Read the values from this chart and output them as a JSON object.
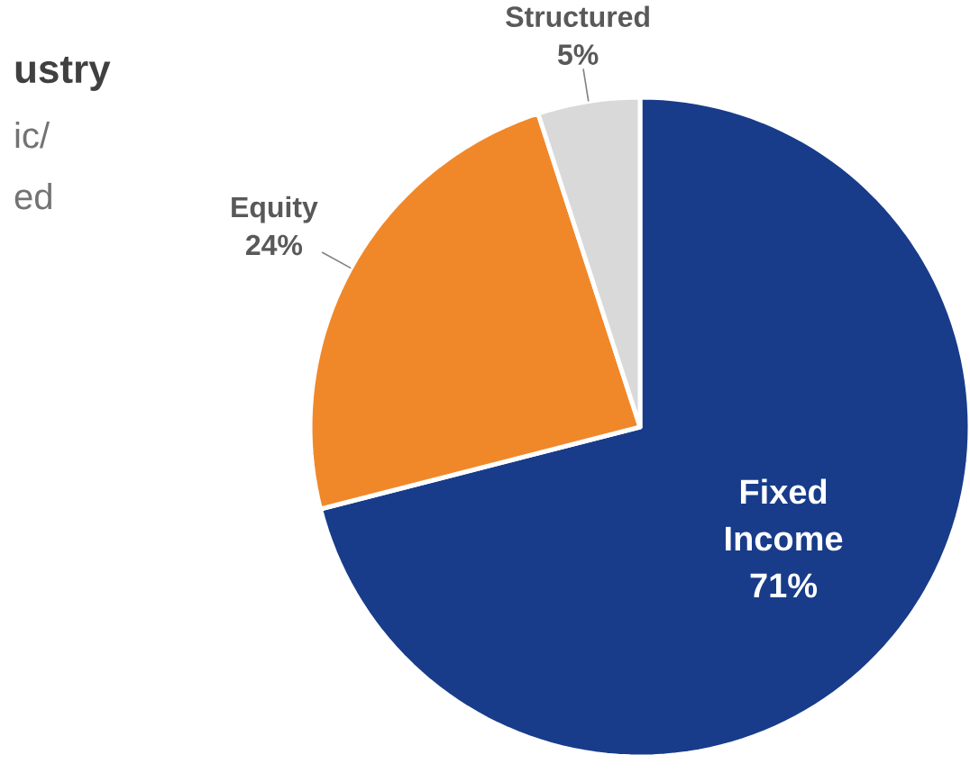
{
  "chart_data": {
    "type": "pie",
    "title": "ustry",
    "annotations": [
      "ic/",
      "ed"
    ],
    "categories": [
      "Fixed Income",
      "Equity",
      "Structured"
    ],
    "values": [
      71,
      24,
      5
    ],
    "colors": [
      "#183c8a",
      "#f0882a",
      "#d9d9d9"
    ],
    "value_labels": [
      "71%",
      "24%",
      "5%"
    ]
  }
}
